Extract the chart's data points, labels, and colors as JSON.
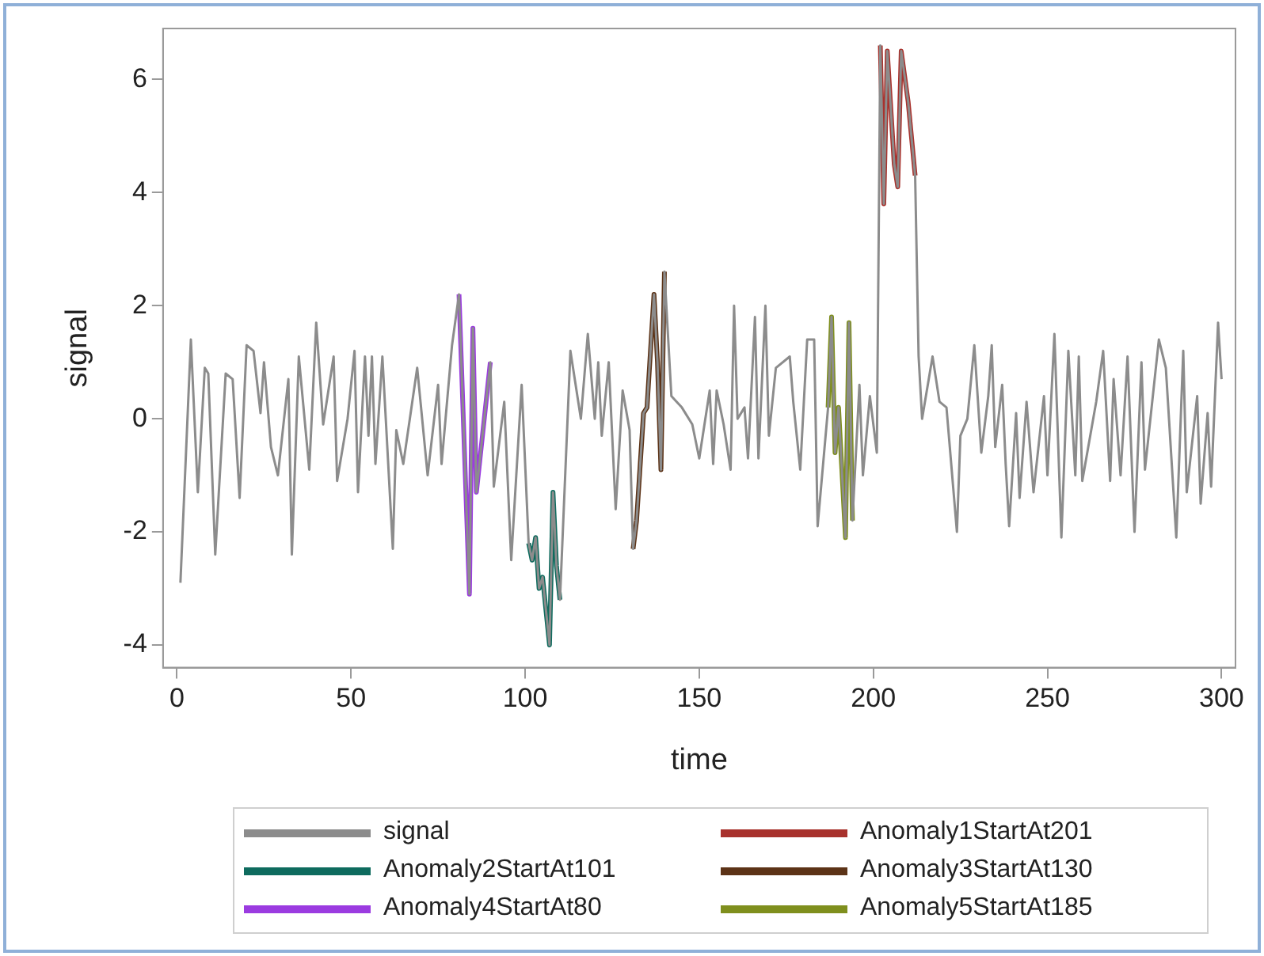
{
  "chart_data": {
    "type": "line",
    "xlabel": "time",
    "ylabel": "signal",
    "xlim": [
      -4,
      304
    ],
    "ylim": [
      -4.4,
      6.9
    ],
    "xticks": [
      0,
      50,
      100,
      150,
      200,
      250,
      300
    ],
    "yticks": [
      -4,
      -2,
      0,
      2,
      4,
      6
    ],
    "grid": false,
    "legend": "bottom",
    "marker": "none",
    "line_style": "solid",
    "series": [
      {
        "name": "signal",
        "color": "#8c8c8c",
        "x": [
          1,
          4,
          6,
          8,
          9,
          11,
          14,
          16,
          18,
          20,
          22,
          24,
          25,
          27,
          29,
          32,
          33,
          35,
          38,
          40,
          42,
          45,
          46,
          49,
          51,
          52,
          54,
          55,
          56,
          57,
          59,
          62,
          63,
          65,
          69,
          72,
          75,
          76,
          79,
          81,
          84,
          85,
          86,
          90,
          91,
          94,
          96,
          99,
          101,
          102,
          103,
          104,
          105,
          106,
          107,
          108,
          109,
          110,
          113,
          116,
          118,
          120,
          121,
          122,
          124,
          126,
          128,
          130,
          131,
          132,
          134,
          135,
          137,
          138,
          139,
          140,
          142,
          145,
          148,
          150,
          153,
          154,
          155,
          157,
          159,
          160,
          161,
          163,
          164,
          166,
          167,
          169,
          170,
          172,
          176,
          177,
          179,
          181,
          183,
          184,
          187,
          188,
          189,
          190,
          192,
          193,
          194,
          196,
          197,
          199,
          201,
          202,
          203,
          204,
          206,
          207,
          208,
          210,
          212,
          213,
          214,
          217,
          219,
          221,
          224,
          225,
          227,
          229,
          231,
          233,
          234,
          235,
          237,
          238,
          239,
          241,
          242,
          244,
          246,
          249,
          250,
          252,
          254,
          256,
          258,
          259,
          260,
          264,
          266,
          268,
          269,
          271,
          273,
          275,
          277,
          278,
          282,
          284,
          287,
          289,
          290,
          293,
          294,
          296,
          297,
          299,
          300
        ],
        "values": [
          -2.9,
          1.4,
          -1.3,
          0.9,
          0.8,
          -2.4,
          0.8,
          0.7,
          -1.4,
          1.3,
          1.2,
          0.1,
          1,
          -0.5,
          -1,
          0.7,
          -2.4,
          1.1,
          -0.9,
          1.7,
          -0.1,
          1.1,
          -1.1,
          0,
          1.2,
          -1.3,
          1.1,
          -0.3,
          1.1,
          -0.8,
          1.1,
          -2.3,
          -0.2,
          -0.8,
          0.9,
          -1,
          0.6,
          -0.8,
          1.3,
          2.2,
          -3.1,
          1.6,
          -1.3,
          1,
          -1.2,
          0.3,
          -2.5,
          0.6,
          -2.2,
          -2.5,
          -2.1,
          -3,
          -2.8,
          -3.4,
          -4,
          -1.3,
          -2.6,
          -3.2,
          1.2,
          0,
          1.5,
          0,
          1,
          -0.3,
          1,
          -1.6,
          0.5,
          -0.2,
          -2.3,
          -1.8,
          0.1,
          0.2,
          2.2,
          1,
          -0.9,
          2.6,
          0.4,
          0.2,
          -0.1,
          -0.7,
          0.5,
          -0.8,
          0.5,
          -0.1,
          -0.9,
          2,
          0,
          0.2,
          -0.7,
          1.8,
          -0.7,
          2,
          -0.3,
          0.9,
          1.1,
          0.3,
          -0.9,
          1.4,
          1.4,
          -1.9,
          0.2,
          1.8,
          -0.6,
          0.2,
          -2.1,
          1.7,
          -1.8,
          0.6,
          -1,
          0.4,
          -0.6,
          6.6,
          3.8,
          6.5,
          4.5,
          4.1,
          6.5,
          5.6,
          4.3,
          1.1,
          0,
          1.1,
          0.3,
          0.2,
          -2,
          -0.3,
          0,
          1.3,
          -0.6,
          0.4,
          1.3,
          -0.5,
          0.6,
          -0.8,
          -1.9,
          0.1,
          -1.4,
          0.3,
          -1.3,
          0.4,
          -1,
          1.5,
          -2.1,
          1.2,
          -1,
          1.1,
          -1.1,
          0.3,
          1.2,
          -1.1,
          0.7,
          -1,
          1.1,
          -2,
          1,
          -0.9,
          1.4,
          0.9,
          -2.1,
          1.2,
          -1.3,
          0.4,
          -1.5,
          0.1,
          -1.2,
          1.7,
          0.7
        ]
      },
      {
        "name": "Anomaly1StartAt201",
        "color": "#a8322d",
        "x": [
          202,
          203,
          204,
          206,
          207,
          208,
          210,
          212
        ],
        "values": [
          6.6,
          3.8,
          6.5,
          4.5,
          4.1,
          6.5,
          5.6,
          4.3
        ]
      },
      {
        "name": "Anomaly2StartAt101",
        "color": "#0e6b5e",
        "x": [
          101,
          102,
          103,
          104,
          105,
          106,
          107,
          108,
          109,
          110
        ],
        "values": [
          -2.2,
          -2.5,
          -2.1,
          -3,
          -2.8,
          -3.4,
          -4,
          -1.3,
          -2.6,
          -3.2
        ]
      },
      {
        "name": "Anomaly3StartAt130",
        "color": "#5c3317",
        "x": [
          131,
          132,
          134,
          135,
          137,
          138,
          139,
          140
        ],
        "values": [
          -2.3,
          -1.8,
          0.1,
          0.2,
          2.2,
          1,
          -0.9,
          2.6
        ]
      },
      {
        "name": "Anomaly4StartAt80",
        "color": "#9b3be0",
        "x": [
          81,
          84,
          85,
          86,
          90
        ],
        "values": [
          2.2,
          -3.1,
          1.6,
          -1.3,
          1
        ]
      },
      {
        "name": "Anomaly5StartAt185",
        "color": "#7f8f1e",
        "x": [
          187,
          188,
          189,
          190,
          192,
          193,
          194
        ],
        "values": [
          0.2,
          1.8,
          -0.6,
          0.2,
          -2.1,
          1.7,
          -1.8
        ]
      }
    ]
  }
}
